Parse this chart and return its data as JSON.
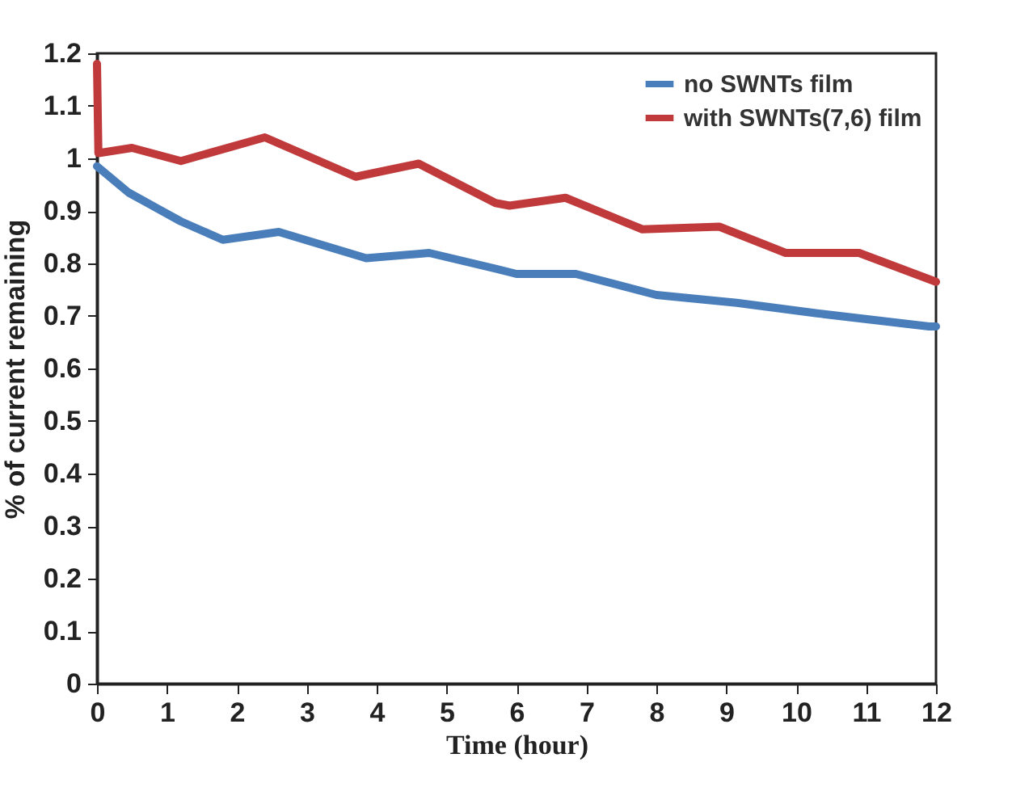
{
  "chart_data": {
    "type": "line",
    "xlabel": "Time (hour)",
    "ylabel": "% of current remaining",
    "xlim": [
      0,
      12
    ],
    "xticks": [
      0,
      1,
      2,
      3,
      4,
      5,
      6,
      7,
      8,
      9,
      10,
      11,
      12
    ],
    "ylim": [
      0,
      1.2
    ],
    "yticks": [
      0,
      0.1,
      0.2,
      0.3,
      0.4,
      0.5,
      0.6,
      0.7,
      0.8,
      0.9,
      1,
      1.1,
      1.2
    ],
    "grid": false,
    "legend": "top right",
    "marker": "none",
    "line_style": "solid",
    "series": [
      {
        "name": "no SWNTs film",
        "color": "#4a7ebb",
        "x": [
          0,
          0.45,
          1.2,
          1.8,
          2.6,
          3.85,
          4.75,
          5.7,
          6,
          6.85,
          8,
          9.15,
          10.3,
          11.9,
          12
        ],
        "values": [
          0.985,
          0.935,
          0.88,
          0.845,
          0.86,
          0.81,
          0.82,
          0.79,
          0.78,
          0.78,
          0.74,
          0.725,
          0.705,
          0.68,
          0.68
        ]
      },
      {
        "name": "with SWNTs(7,6) film",
        "color": "#c0393b",
        "x": [
          0,
          0.02,
          0.5,
          1.2,
          2.4,
          3.7,
          4.6,
          5.7,
          5.9,
          6.7,
          7.8,
          8.9,
          9.85,
          10.9,
          11.9,
          12
        ],
        "values": [
          1.18,
          1.01,
          1.02,
          0.995,
          1.04,
          0.965,
          0.99,
          0.915,
          0.91,
          0.925,
          0.865,
          0.87,
          0.82,
          0.82,
          0.77,
          0.765
        ]
      }
    ]
  }
}
